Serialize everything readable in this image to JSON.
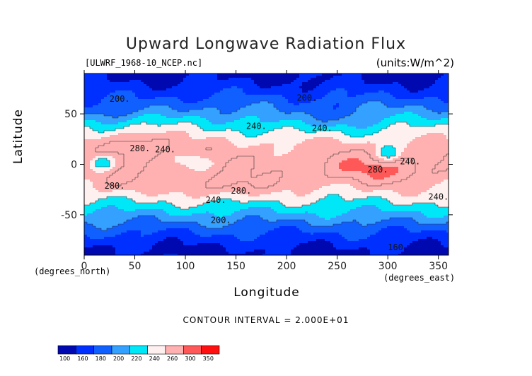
{
  "chart_data": {
    "type": "heatmap",
    "title": "Upward Longwave Radiation Flux",
    "source_label": "[ULWRF_1968-10_NCEP.nc]",
    "units_label": "(units:W/m^2)",
    "xlabel": "Longitude",
    "ylabel": "Latitude",
    "x_unit_label": "(degrees_east)",
    "y_unit_label": "(degrees_north)",
    "xlim": [
      0,
      360
    ],
    "ylim": [
      -90,
      90
    ],
    "x_ticks": [
      0,
      50,
      100,
      150,
      200,
      250,
      300,
      350
    ],
    "y_ticks": [
      -50,
      0,
      50
    ],
    "contour_interval_text": "CONTOUR INTERVAL = 2.000E+01",
    "contour_labels": [
      {
        "text": "200.",
        "lon": 25,
        "lat": 62
      },
      {
        "text": "200.",
        "lon": 210,
        "lat": 63
      },
      {
        "text": "240.",
        "lon": 160,
        "lat": 35
      },
      {
        "text": "240.",
        "lon": 225,
        "lat": 33
      },
      {
        "text": "280.",
        "lon": 45,
        "lat": 13
      },
      {
        "text": "240.",
        "lon": 70,
        "lat": 12
      },
      {
        "text": "240.",
        "lon": 312,
        "lat": 0
      },
      {
        "text": "280.",
        "lon": 280,
        "lat": -8
      },
      {
        "text": "280.",
        "lon": 20,
        "lat": -24
      },
      {
        "text": "280.",
        "lon": 145,
        "lat": -29
      },
      {
        "text": "240.",
        "lon": 120,
        "lat": -38
      },
      {
        "text": "240.",
        "lon": 340,
        "lat": -35
      },
      {
        "text": "200.",
        "lon": 125,
        "lat": -58
      },
      {
        "text": "160.",
        "lon": 300,
        "lat": -85
      }
    ],
    "levels": [
      100,
      160,
      180,
      200,
      220,
      240,
      260,
      300,
      350
    ],
    "colorbar_colors": [
      "#0008b0",
      "#0030ff",
      "#1060ff",
      "#34a0ff",
      "#00e8f8",
      "#fff0f0",
      "#ffb0b0",
      "#ff5858",
      "#ff1010"
    ],
    "colorbar_labels": [
      "100",
      "160",
      "180",
      "200",
      "220",
      "240",
      "260",
      "300",
      "350"
    ]
  }
}
